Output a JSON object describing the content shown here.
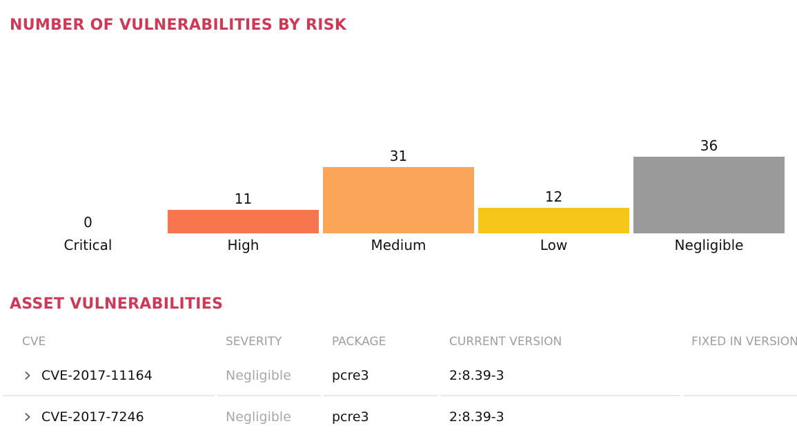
{
  "theme": {
    "accent_color": "#cd3a58",
    "muted_text_color": "#9b9ea2",
    "divider_color": "#e9e9e9"
  },
  "chart_section": {
    "title": "NUMBER OF VULNERABILITIES BY RISK"
  },
  "chart_data": {
    "type": "bar",
    "title": "NUMBER OF VULNERABILITIES BY RISK",
    "categories": [
      "Critical",
      "High",
      "Medium",
      "Low",
      "Negligible"
    ],
    "values": [
      0,
      11,
      31,
      12,
      36
    ],
    "bar_colors": [
      null,
      "#f7764e",
      "#fba558",
      "#f5c71b",
      "#9a9a9a"
    ],
    "value_labels_shown": true,
    "ylim": [
      0,
      36
    ],
    "axes_hidden": true,
    "grid": false,
    "legend": "none"
  },
  "table_section": {
    "title": "ASSET VULNERABILITIES",
    "columns": {
      "cve": "CVE",
      "severity": "SEVERITY",
      "package": "PACKAGE",
      "current_version": "CURRENT VERSION",
      "fixed_in_version": "FIXED IN VERSION"
    },
    "rows": [
      {
        "cve": "CVE-2017-11164",
        "severity": "Negligible",
        "package": "pcre3",
        "current_version": "2:8.39-3",
        "fixed_in_version": ""
      },
      {
        "cve": "CVE-2017-7246",
        "severity": "Negligible",
        "package": "pcre3",
        "current_version": "2:8.39-3",
        "fixed_in_version": ""
      }
    ]
  }
}
